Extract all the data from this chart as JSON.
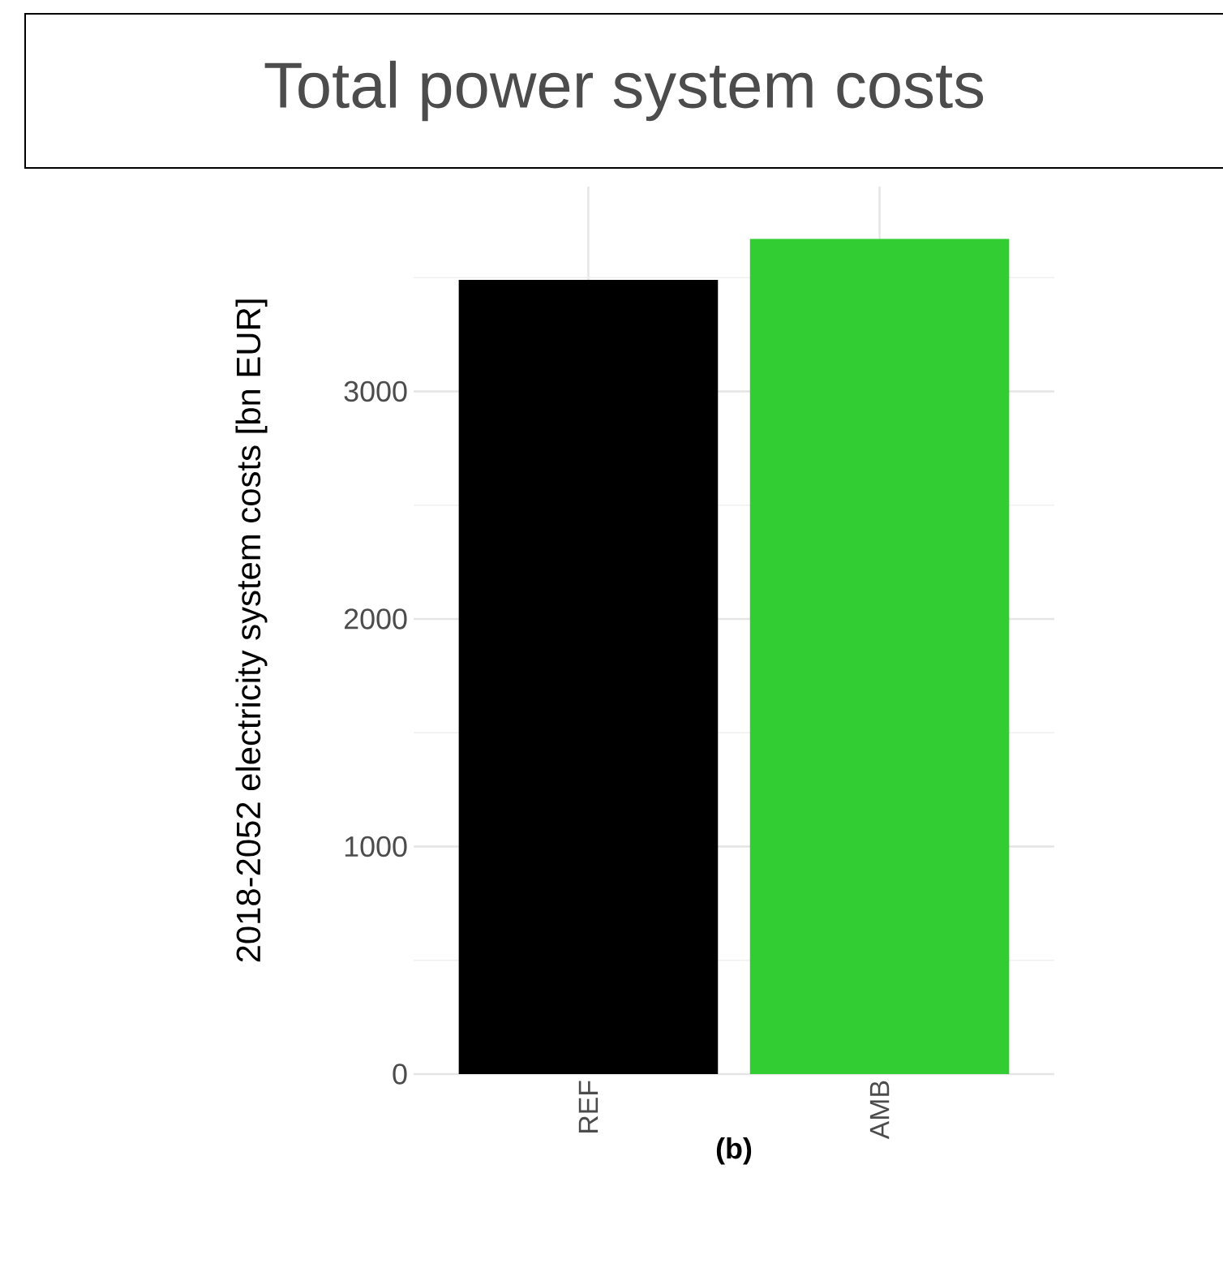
{
  "chart_data": {
    "type": "bar",
    "title": "Total power system costs",
    "xlabel": "(b)",
    "ylabel": "2018-2052 electricity system costs [bn EUR]",
    "categories": [
      "REF",
      "AMB"
    ],
    "values": [
      3490,
      3670
    ],
    "colors": [
      "#000000",
      "#32cd32"
    ],
    "ylim": [
      0,
      3900
    ],
    "yticks": [
      0,
      {
        "value": 500,
        "label": null
      },
      1000,
      {
        "value": 1500,
        "label": null
      },
      2000,
      {
        "value": 2500,
        "label": null
      },
      3000,
      {
        "value": 3500,
        "label": null
      }
    ],
    "grid": true
  }
}
